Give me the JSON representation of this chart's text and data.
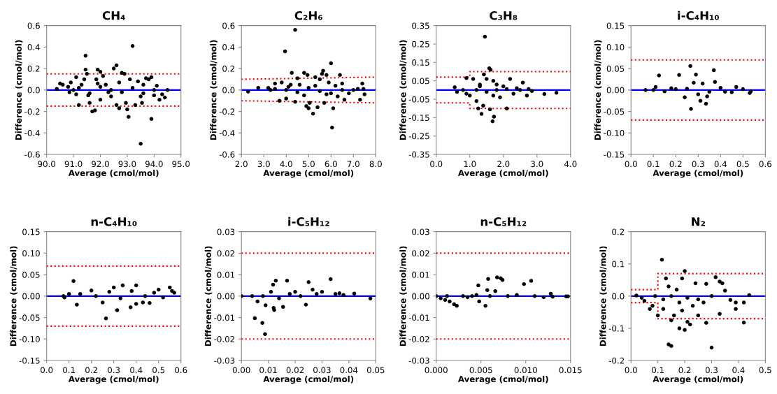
{
  "chart_data": [
    {
      "type": "scatter",
      "title": "CH₄",
      "xlabel": "Average (cmol/mol)",
      "ylabel": "Difference (cmol/mol)",
      "grid": false,
      "xlim": [
        90.0,
        95.0
      ],
      "xticks": [
        {
          "value": 90,
          "label": "90.0"
        },
        {
          "value": 91,
          "label": "91.0"
        },
        {
          "value": 92,
          "label": "92.0"
        },
        {
          "value": 93,
          "label": "93.0"
        },
        {
          "value": 94,
          "label": "94.0"
        },
        {
          "value": 95,
          "label": "95.0"
        }
      ],
      "ylim": [
        -0.6,
        0.6
      ],
      "yticks": [
        -0.6,
        -0.4,
        -0.2,
        {
          "value": 0,
          "label": "0.0"
        },
        0.2,
        0.4,
        0.6
      ],
      "ref_lines": [
        {
          "axis": "y",
          "value": 0,
          "color": "#0000ff",
          "line_style": "solid"
        }
      ],
      "series": [
        {
          "type": "line",
          "color": "#ff0000",
          "line_style": "dotted",
          "x": [
            90.0,
            95.0
          ],
          "values": [
            0.15,
            0.15
          ]
        },
        {
          "type": "line",
          "color": "#ff0000",
          "line_style": "dotted",
          "x": [
            90.0,
            95.0
          ],
          "values": [
            -0.15,
            -0.15
          ]
        },
        {
          "color": "#000000",
          "marker": "circle",
          "x": [
            90.38,
            90.5,
            90.6,
            90.8,
            90.85,
            90.9,
            91.0,
            91.1,
            91.2,
            91.3,
            91.4,
            91.45,
            91.45,
            91.5,
            91.55,
            91.6,
            91.7,
            91.8,
            91.85,
            91.9,
            92.0,
            92.0,
            92.1,
            92.2,
            92.3,
            92.4,
            92.5,
            92.6,
            92.6,
            92.7,
            92.8,
            92.9,
            92.95,
            93.0,
            93.05,
            93.1,
            93.2,
            93.3,
            93.4,
            93.5,
            93.55,
            93.6,
            93.7,
            93.8,
            93.9,
            93.9,
            94.0,
            94.1,
            94.2,
            94.3,
            94.4,
            94.5,
            91.2,
            91.6,
            92.0,
            92.4,
            92.8,
            93.2,
            93.6,
            94.0,
            91.1,
            91.9,
            92.7,
            93.5
          ],
          "values": [
            0.01,
            0.06,
            0.05,
            0.03,
            -0.02,
            0.07,
            0.0,
            0.12,
            -0.14,
            0.05,
            0.1,
            0.32,
            0.19,
            0.15,
            -0.05,
            -0.12,
            -0.2,
            -0.19,
            0.1,
            0.19,
            0.17,
            -0.09,
            0.13,
            0.05,
            -0.02,
            -0.06,
            0.2,
            0.23,
            -0.14,
            -0.17,
            0.16,
            0.15,
            -0.12,
            -0.18,
            -0.25,
            0.1,
            0.41,
            -0.14,
            0.08,
            -0.5,
            -0.12,
            0.05,
            0.11,
            0.1,
            -0.27,
            0.12,
            -0.05,
            0.04,
            -0.09,
            -0.04,
            -0.07,
            0.0,
            0.02,
            -0.03,
            0.03,
            0.0,
            -0.02,
            0.02,
            -0.03,
            0.0,
            -0.04,
            0.06,
            0.07,
            -0.06
          ]
        }
      ]
    },
    {
      "type": "scatter",
      "title": "C₂H₆",
      "xlabel": "Average (cmol/mol)",
      "ylabel": "Difference (cmol/mol)",
      "grid": false,
      "xlim": [
        2.0,
        8.0
      ],
      "xticks": [
        {
          "value": 2,
          "label": "2.0"
        },
        {
          "value": 3,
          "label": "3.0"
        },
        {
          "value": 4,
          "label": "4.0"
        },
        {
          "value": 5,
          "label": "5.0"
        },
        {
          "value": 6,
          "label": "6.0"
        },
        {
          "value": 7,
          "label": "7.0"
        },
        {
          "value": 8,
          "label": "8.0"
        }
      ],
      "ylim": [
        -0.6,
        0.6
      ],
      "yticks": [
        -0.6,
        -0.4,
        -0.2,
        {
          "value": 0,
          "label": "0.0"
        },
        0.2,
        0.4,
        0.6
      ],
      "ref_lines": [
        {
          "axis": "y",
          "value": 0,
          "color": "#0000ff",
          "line_style": "solid"
        }
      ],
      "series": [
        {
          "type": "line",
          "color": "#ff0000",
          "line_style": "dotted",
          "x": [
            2.0,
            8.0
          ],
          "values": [
            0.1,
            0.12
          ]
        },
        {
          "type": "line",
          "color": "#ff0000",
          "line_style": "dotted",
          "x": [
            2.0,
            8.0
          ],
          "values": [
            -0.1,
            -0.12
          ]
        },
        {
          "color": "#000000",
          "marker": "circle",
          "x": [
            2.3,
            2.75,
            3.2,
            3.3,
            3.5,
            3.7,
            3.8,
            3.95,
            4.0,
            4.1,
            4.25,
            4.4,
            4.4,
            4.5,
            4.6,
            4.8,
            4.9,
            4.95,
            5.0,
            5.05,
            5.2,
            5.3,
            5.4,
            5.5,
            5.6,
            5.65,
            5.7,
            5.8,
            5.9,
            6.0,
            6.05,
            6.1,
            6.2,
            6.4,
            6.5,
            6.6,
            6.8,
            7.0,
            7.2,
            7.4,
            7.45,
            7.5,
            7.3,
            3.5,
            4.0,
            4.5,
            5.0,
            5.5,
            6.0,
            6.5,
            4.2,
            4.8,
            5.3,
            5.8,
            6.3
          ],
          "values": [
            -0.015,
            0.02,
            0.02,
            0.0,
            0.06,
            -0.1,
            0.07,
            0.36,
            -0.08,
            0.03,
            0.16,
            0.56,
            -0.11,
            0.11,
            0.05,
            0.16,
            -0.15,
            0.14,
            -0.17,
            -0.12,
            -0.22,
            0.12,
            -0.16,
            0.1,
            0.15,
            0.18,
            -0.12,
            0.14,
            0.07,
            0.25,
            -0.35,
            -0.17,
            0.04,
            0.14,
            0.06,
            -0.09,
            -0.03,
            0.0,
            0.01,
            0.06,
            0.01,
            -0.04,
            -0.09,
            0.01,
            0.0,
            -0.02,
            0.02,
            -0.01,
            -0.03,
            0.0,
            0.05,
            -0.05,
            0.04,
            -0.04,
            -0.06
          ]
        }
      ]
    },
    {
      "type": "scatter",
      "title": "C₃H₈",
      "xlabel": "Average (cmol/mol)",
      "ylabel": "Difference (cmol/mol)",
      "grid": false,
      "xlim": [
        0.0,
        4.0
      ],
      "xticks": [
        {
          "value": 0,
          "label": "0.0"
        },
        {
          "value": 1,
          "label": "1.0"
        },
        {
          "value": 2,
          "label": "2.0"
        },
        {
          "value": 3,
          "label": "3.0"
        },
        {
          "value": 4,
          "label": "4.0"
        }
      ],
      "ylim": [
        -0.35,
        0.35
      ],
      "yticks": [
        -0.35,
        -0.25,
        -0.15,
        -0.05,
        0.05,
        0.15,
        0.25,
        0.35
      ],
      "ref_lines": [
        {
          "axis": "y",
          "value": 0,
          "color": "#0000ff",
          "line_style": "solid"
        }
      ],
      "series": [
        {
          "type": "line",
          "color": "#ff0000",
          "line_style": "dotted",
          "x": [
            0.0,
            1.0,
            1.0,
            4.0
          ],
          "values": [
            0.07,
            0.07,
            0.1,
            0.1
          ]
        },
        {
          "type": "line",
          "color": "#ff0000",
          "line_style": "dotted",
          "x": [
            0.0,
            1.0,
            1.0,
            4.0
          ],
          "values": [
            -0.07,
            -0.07,
            -0.1,
            -0.1
          ]
        },
        {
          "color": "#000000",
          "marker": "circle",
          "x": [
            0.55,
            0.62,
            0.8,
            0.9,
            1.0,
            1.1,
            1.2,
            1.25,
            1.3,
            1.35,
            1.4,
            1.42,
            1.45,
            1.5,
            1.58,
            1.62,
            1.6,
            1.7,
            1.68,
            1.72,
            1.8,
            1.9,
            2.0,
            2.1,
            2.2,
            2.3,
            2.5,
            2.58,
            2.7,
            2.75,
            2.85,
            3.22,
            3.58,
            1.2,
            1.5,
            1.8,
            2.1,
            0.9,
            1.3,
            1.7,
            2.4
          ],
          "values": [
            0.015,
            -0.01,
            0.0,
            0.065,
            -0.03,
            0.06,
            -0.06,
            -0.1,
            0.03,
            -0.13,
            -0.085,
            0.085,
            0.29,
            0.06,
            0.118,
            0.11,
            -0.105,
            0.05,
            -0.17,
            -0.145,
            0.03,
            -0.04,
            0.02,
            -0.1,
            0.06,
            -0.02,
            0.0,
            0.04,
            -0.03,
            0.005,
            -0.005,
            -0.022,
            -0.015,
            0.0,
            -0.01,
            0.0,
            0.005,
            -0.02,
            0.02,
            -0.03,
            0.01
          ]
        }
      ]
    },
    {
      "type": "scatter",
      "title": "i-C₄H₁₀",
      "xlabel": "Average (cmol/mol)",
      "ylabel": "Difference (cmol/mol)",
      "grid": false,
      "xlim": [
        0.0,
        0.6
      ],
      "xticks": [
        {
          "value": 0,
          "label": "0.0"
        },
        0.1,
        0.2,
        0.3,
        0.4,
        0.5,
        0.6
      ],
      "ylim": [
        -0.15,
        0.15
      ],
      "yticks": [
        -0.15,
        {
          "value": -0.1,
          "label": "-0.10"
        },
        -0.05,
        {
          "value": 0,
          "label": "0.00"
        },
        0.05,
        {
          "value": 0.1,
          "label": "0.10"
        },
        0.15
      ],
      "ref_lines": [
        {
          "axis": "y",
          "value": 0,
          "color": "#0000ff",
          "line_style": "solid"
        }
      ],
      "series": [
        {
          "type": "line",
          "color": "#ff0000",
          "line_style": "dotted",
          "x": [
            0.0,
            0.6
          ],
          "values": [
            0.07,
            0.07
          ]
        },
        {
          "type": "line",
          "color": "#ff0000",
          "line_style": "dotted",
          "x": [
            0.0,
            0.6
          ],
          "values": [
            -0.07,
            -0.07
          ]
        },
        {
          "color": "#000000",
          "marker": "circle",
          "x": [
            0.065,
            0.1,
            0.11,
            0.125,
            0.15,
            0.2,
            0.215,
            0.24,
            0.265,
            0.268,
            0.28,
            0.29,
            0.3,
            0.31,
            0.32,
            0.335,
            0.34,
            0.37,
            0.375,
            0.4,
            0.45,
            0.47,
            0.5,
            0.53,
            0.535,
            0.25,
            0.35,
            0.18,
            0.42
          ],
          "values": [
            0.0,
            0.0,
            0.007,
            0.034,
            -0.003,
            0.002,
            0.035,
            -0.017,
            0.056,
            -0.044,
            0.017,
            0.036,
            -0.01,
            -0.025,
            0.015,
            -0.032,
            -0.015,
            0.046,
            0.019,
            0.005,
            -0.005,
            0.007,
            0.002,
            -0.007,
            -0.003,
            0.003,
            -0.004,
            0.004,
            -0.004
          ]
        }
      ]
    },
    {
      "type": "scatter",
      "title": "n-C₄H₁₀",
      "xlabel": "Average (cmol/mol)",
      "ylabel": "Difference (cmol/mol)",
      "grid": false,
      "xlim": [
        0.0,
        0.6
      ],
      "xticks": [
        {
          "value": 0,
          "label": "0.0"
        },
        0.1,
        0.2,
        0.3,
        0.4,
        0.5,
        0.6
      ],
      "ylim": [
        -0.15,
        0.15
      ],
      "yticks": [
        -0.15,
        {
          "value": -0.1,
          "label": "-0.10"
        },
        -0.05,
        {
          "value": 0,
          "label": "0.00"
        },
        0.05,
        {
          "value": 0.1,
          "label": "0.10"
        },
        0.15
      ],
      "ref_lines": [
        {
          "axis": "y",
          "value": 0,
          "color": "#0000ff",
          "line_style": "solid"
        }
      ],
      "series": [
        {
          "type": "line",
          "color": "#ff0000",
          "line_style": "dotted",
          "x": [
            0.0,
            0.6
          ],
          "values": [
            0.07,
            0.07
          ]
        },
        {
          "type": "line",
          "color": "#ff0000",
          "line_style": "dotted",
          "x": [
            0.0,
            0.6
          ],
          "values": [
            -0.07,
            -0.07
          ]
        },
        {
          "color": "#000000",
          "marker": "circle",
          "x": [
            0.075,
            0.08,
            0.1,
            0.12,
            0.135,
            0.2,
            0.25,
            0.265,
            0.3,
            0.315,
            0.34,
            0.375,
            0.4,
            0.4,
            0.43,
            0.46,
            0.5,
            0.55,
            0.56,
            0.57,
            0.52,
            0.15,
            0.22,
            0.28,
            0.33,
            0.38,
            0.44,
            0.48
          ],
          "values": [
            0.0,
            -0.003,
            0.005,
            0.035,
            -0.02,
            0.013,
            -0.015,
            -0.052,
            0.02,
            -0.033,
            0.025,
            -0.026,
            0.025,
            -0.018,
            -0.015,
            -0.016,
            0.015,
            0.02,
            0.012,
            0.008,
            -0.003,
            0.005,
            0.0,
            0.01,
            -0.005,
            0.012,
            0.0,
            0.008
          ]
        }
      ]
    },
    {
      "type": "scatter",
      "title": "i-C₅H₁₂",
      "xlabel": "Average (cmol/mol)",
      "ylabel": "Difference (cmol/mol)",
      "grid": false,
      "xlim": [
        0.0,
        0.05
      ],
      "xticks": [
        {
          "value": 0,
          "label": "0.00"
        },
        0.01,
        0.02,
        0.03,
        0.04,
        0.05
      ],
      "ylim": [
        -0.03,
        0.03
      ],
      "yticks": [
        -0.03,
        -0.02,
        -0.01,
        {
          "value": 0,
          "label": "0.00"
        },
        0.01,
        0.02,
        0.03
      ],
      "ref_lines": [
        {
          "axis": "y",
          "value": 0,
          "color": "#0000ff",
          "line_style": "solid"
        }
      ],
      "series": [
        {
          "type": "line",
          "color": "#ff0000",
          "line_style": "dotted",
          "x": [
            0.0,
            0.05
          ],
          "values": [
            0.02,
            0.02
          ]
        },
        {
          "type": "line",
          "color": "#ff0000",
          "line_style": "dotted",
          "x": [
            0.0,
            0.05
          ],
          "values": [
            -0.02,
            -0.02
          ]
        },
        {
          "color": "#000000",
          "marker": "circle",
          "x": [
            0.0,
            0.004,
            0.005,
            0.006,
            0.0078,
            0.0088,
            0.009,
            0.011,
            0.0118,
            0.012,
            0.0122,
            0.0128,
            0.0155,
            0.017,
            0.02,
            0.024,
            0.025,
            0.0265,
            0.03,
            0.0332,
            0.035,
            0.0365,
            0.038,
            0.042,
            0.048,
            0.008,
            0.014,
            0.018,
            0.022,
            0.028
          ],
          "values": [
            0.0,
            0.0,
            -0.0103,
            -0.0025,
            -0.0125,
            -0.0177,
            -0.0043,
            0.002,
            0.0053,
            -0.0055,
            -0.0065,
            0.0072,
            -0.005,
            0.0072,
            0.002,
            -0.004,
            0.0065,
            0.003,
            0.002,
            0.0079,
            0.001,
            0.0013,
            0.0005,
            0.0012,
            -0.0011,
            0.0,
            -0.001,
            0.001,
            0.0,
            0.001
          ]
        }
      ]
    },
    {
      "type": "scatter",
      "title": "n-C₅H₁₂",
      "xlabel": "Average (cmol/mol)",
      "ylabel": "Difference (cmol/mol)",
      "grid": false,
      "xlim": [
        0.0,
        0.015
      ],
      "xticks": [
        {
          "value": 0,
          "label": "0.000"
        },
        0.005,
        {
          "value": 0.01,
          "label": "0.010"
        },
        0.015
      ],
      "ylim": [
        -0.03,
        0.03
      ],
      "yticks": [
        -0.03,
        -0.02,
        -0.01,
        {
          "value": 0,
          "label": "0.00"
        },
        0.01,
        0.02,
        0.03
      ],
      "ref_lines": [
        {
          "axis": "y",
          "value": 0,
          "color": "#0000ff",
          "line_style": "solid"
        }
      ],
      "series": [
        {
          "type": "line",
          "color": "#ff0000",
          "line_style": "dotted",
          "x": [
            0.0,
            0.015
          ],
          "values": [
            0.02,
            0.02
          ]
        },
        {
          "type": "line",
          "color": "#ff0000",
          "line_style": "dotted",
          "x": [
            0.0,
            0.015
          ],
          "values": [
            -0.02,
            -0.02
          ]
        },
        {
          "color": "#000000",
          "marker": "circle",
          "x": [
            0.0,
            0.0005,
            0.001,
            0.0015,
            0.002,
            0.0023,
            0.0012,
            0.003,
            0.004,
            0.0047,
            0.0048,
            0.0055,
            0.0058,
            0.0068,
            0.0072,
            0.0074,
            0.0057,
            0.0066,
            0.0098,
            0.0106,
            0.0128,
            0.013,
            0.0145,
            0.0147,
            0.012,
            0.008,
            0.0035,
            0.0045,
            0.006,
            0.009,
            0.011
          ],
          "values": [
            0.0,
            -0.001,
            -0.0018,
            -0.0025,
            -0.0038,
            -0.0045,
            0.0,
            0.0,
            0.0,
            0.005,
            -0.0025,
            -0.0045,
            0.008,
            0.0087,
            0.0083,
            0.0075,
            0.0028,
            0.0023,
            0.0056,
            0.0071,
            0.0011,
            -0.0003,
            -0.0001,
            -0.0001,
            -0.0005,
            0.0,
            -0.0005,
            0.0005,
            0.0,
            0.0005,
            0.0
          ]
        }
      ]
    },
    {
      "type": "scatter",
      "title": "N₂",
      "xlabel": "Average (cmol/mol)",
      "ylabel": "Difference (cmol/mol)",
      "grid": false,
      "xlim": [
        0.0,
        0.5
      ],
      "xticks": [
        {
          "value": 0,
          "label": "0.0"
        },
        0.1,
        0.2,
        0.3,
        0.4,
        0.5
      ],
      "ylim": [
        -0.2,
        0.2
      ],
      "yticks": [
        -0.2,
        -0.1,
        {
          "value": 0,
          "label": "0.0"
        },
        0.1,
        0.2
      ],
      "ref_lines": [
        {
          "axis": "y",
          "value": 0,
          "color": "#0000ff",
          "line_style": "solid"
        }
      ],
      "series": [
        {
          "type": "line",
          "color": "#ff0000",
          "line_style": "dotted",
          "x": [
            0.0,
            0.1,
            0.1,
            0.5
          ],
          "values": [
            0.02,
            0.02,
            0.07,
            0.07
          ]
        },
        {
          "type": "line",
          "color": "#ff0000",
          "line_style": "dotted",
          "x": [
            0.0,
            0.1,
            0.1,
            0.5
          ],
          "values": [
            -0.02,
            -0.02,
            -0.07,
            -0.07
          ]
        },
        {
          "color": "#000000",
          "marker": "circle",
          "x": [
            0.02,
            0.04,
            0.05,
            0.07,
            0.08,
            0.09,
            0.1,
            0.115,
            0.13,
            0.14,
            0.15,
            0.15,
            0.16,
            0.18,
            0.19,
            0.2,
            0.2,
            0.21,
            0.22,
            0.24,
            0.25,
            0.28,
            0.28,
            0.3,
            0.315,
            0.33,
            0.33,
            0.34,
            0.35,
            0.37,
            0.39,
            0.39,
            0.42,
            0.42,
            0.44,
            0.12,
            0.15,
            0.18,
            0.21,
            0.25,
            0.3,
            0.12,
            0.17,
            0.23,
            0.27,
            0.14,
            0.19
          ],
          "values": [
            0.002,
            -0.005,
            -0.015,
            -0.04,
            -0.03,
            0.0,
            -0.06,
            0.113,
            0.055,
            -0.15,
            -0.155,
            -0.075,
            -0.06,
            -0.1,
            0.055,
            0.078,
            -0.105,
            -0.08,
            -0.088,
            0.04,
            -0.06,
            0.038,
            -0.083,
            -0.16,
            0.059,
            0.045,
            -0.055,
            0.04,
            0.017,
            -0.012,
            -0.02,
            -0.04,
            -0.02,
            -0.082,
            0.003,
            -0.01,
            0.0,
            -0.02,
            -0.005,
            -0.01,
            0.0,
            -0.04,
            0.02,
            -0.03,
            -0.02,
            0.03,
            -0.045
          ]
        }
      ]
    }
  ]
}
